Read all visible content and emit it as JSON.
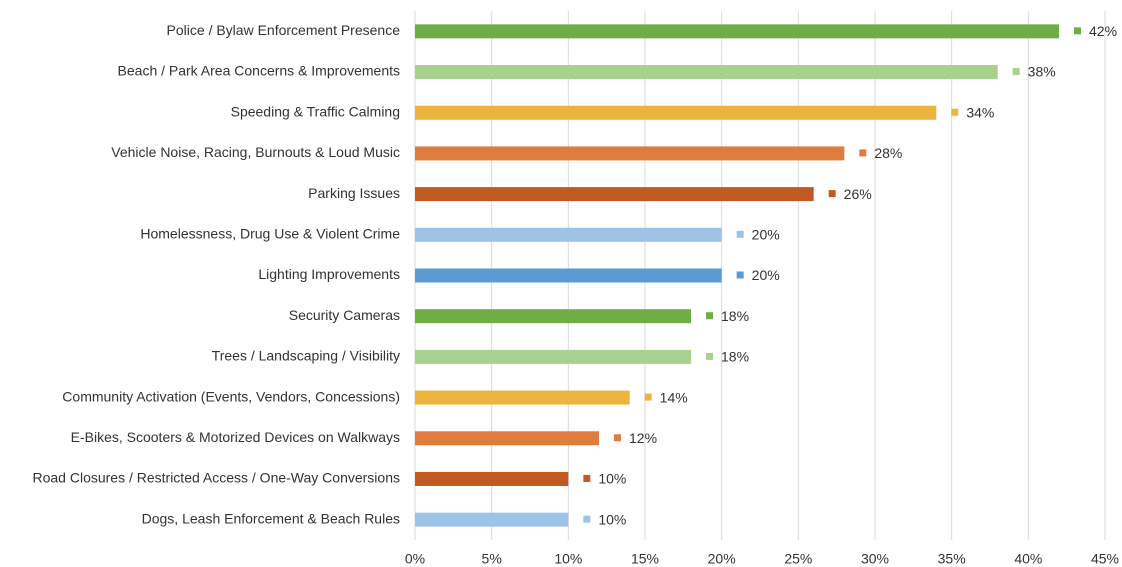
{
  "chart_data": {
    "type": "bar",
    "orientation": "horizontal",
    "categories": [
      "Police / Bylaw Enforcement Presence",
      "Beach / Park Area Concerns & Improvements",
      "Speeding & Traffic Calming",
      "Vehicle Noise, Racing, Burnouts & Loud Music",
      "Parking Issues",
      "Homelessness, Drug Use & Violent Crime",
      "Lighting Improvements",
      "Security Cameras",
      "Trees / Landscaping / Visibility",
      "Community Activation (Events, Vendors, Concessions)",
      "E-Bikes, Scooters & Motorized Devices on Walkways",
      "Road Closures / Restricted Access / One-Way Conversions",
      "Dogs, Leash Enforcement & Beach Rules"
    ],
    "values": [
      42,
      38,
      34,
      28,
      26,
      20,
      20,
      18,
      18,
      14,
      12,
      10,
      10
    ],
    "value_labels": [
      "42%",
      "38%",
      "34%",
      "28%",
      "26%",
      "20%",
      "20%",
      "18%",
      "18%",
      "14%",
      "12%",
      "10%",
      "10%"
    ],
    "colors": [
      "#70ad47",
      "#a9d18e",
      "#ebb43e",
      "#e07c3e",
      "#c05a22",
      "#9dc3e6",
      "#5b9bd5",
      "#70ad47",
      "#a9d18e",
      "#ebb43e",
      "#e07c3e",
      "#c05a22",
      "#9dc3e6"
    ],
    "xlim": [
      0,
      45
    ],
    "xticks": [
      {
        "value": 0,
        "label": "0%"
      },
      {
        "value": 5,
        "label": "5%"
      },
      {
        "value": 10,
        "label": "10%"
      },
      {
        "value": 15,
        "label": "15%"
      },
      {
        "value": 20,
        "label": "20%"
      },
      {
        "value": 25,
        "label": "25%"
      },
      {
        "value": 30,
        "label": "30%"
      },
      {
        "value": 35,
        "label": "35%"
      },
      {
        "value": 40,
        "label": "40%"
      },
      {
        "value": 45,
        "label": "45%"
      }
    ],
    "grid": true
  }
}
